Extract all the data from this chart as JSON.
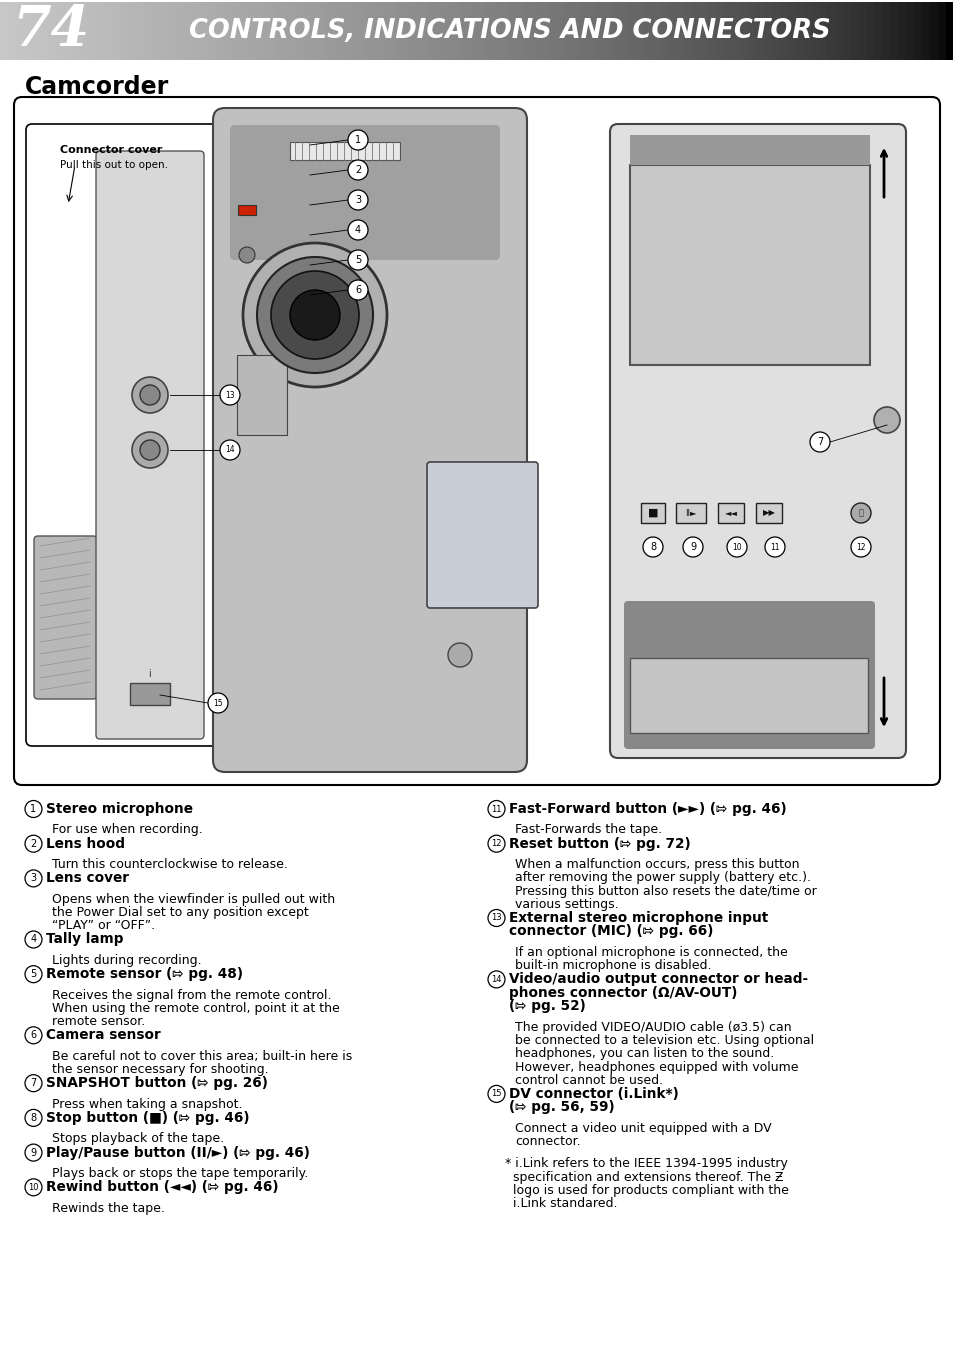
{
  "page_num": "74",
  "header_text": "CONTROLS, INDICATIONS AND CONNECTORS",
  "section_title": "Camcorder",
  "items_left": [
    {
      "num": "1",
      "title": "Stereo microphone",
      "title_bold": true,
      "desc": "For use when recording."
    },
    {
      "num": "2",
      "title": "Lens hood",
      "title_bold": true,
      "desc": "Turn this counterclockwise to release."
    },
    {
      "num": "3",
      "title": "Lens cover",
      "title_bold": true,
      "desc": "Opens when the viewfinder is pulled out with\nthe Power Dial set to any position except\n“PLAY” or “OFF”."
    },
    {
      "num": "4",
      "title": "Tally lamp",
      "title_bold": true,
      "desc": "Lights during recording."
    },
    {
      "num": "5",
      "title": "Remote sensor (⇰ pg. 48)",
      "title_bold": true,
      "desc": "Receives the signal from the remote control.\nWhen using the remote control, point it at the\nremote sensor."
    },
    {
      "num": "6",
      "title": "Camera sensor",
      "title_bold": true,
      "desc": "Be careful not to cover this area; built-in here is\nthe sensor necessary for shooting."
    },
    {
      "num": "7",
      "title": "SNAPSHOT button (⇰ pg. 26)",
      "title_bold": true,
      "desc": "Press when taking a snapshot."
    },
    {
      "num": "8",
      "title": "Stop button (■) (⇰ pg. 46)",
      "title_bold": true,
      "desc": "Stops playback of the tape."
    },
    {
      "num": "9",
      "title": "Play/Pause button (II/►) (⇰ pg. 46)",
      "title_bold": true,
      "desc": "Plays back or stops the tape temporarily."
    },
    {
      "num": "10",
      "title": "Rewind button (◄◄) (⇰ pg. 46)",
      "title_bold": true,
      "desc": "Rewinds the tape."
    }
  ],
  "items_right": [
    {
      "num": "11",
      "title": "Fast-Forward button (►►) (⇰ pg. 46)",
      "title_bold": true,
      "desc": "Fast-Forwards the tape."
    },
    {
      "num": "12",
      "title": "Reset button (⇰ pg. 72)",
      "title_bold": true,
      "desc": "When a malfunction occurs, press this button\nafter removing the power supply (battery etc.).\nPressing this button also resets the date/time or\nvarious settings."
    },
    {
      "num": "13",
      "title": "External stereo microphone input\nconnector (MIC) (⇰ pg. 66)",
      "title_bold": true,
      "desc": "If an optional microphone is connected, the\nbuilt-in microphone is disabled."
    },
    {
      "num": "14",
      "title": "Video/audio output connector or head-\nphones connector (Ω/AV-OUT)\n(⇰ pg. 52)",
      "title_bold": true,
      "desc": "The provided VIDEO/AUDIO cable (ø3.5) can\nbe connected to a television etc. Using optional\nheadphones, you can listen to the sound.\nHowever, headphones equipped with volume\ncontrol cannot be used."
    },
    {
      "num": "15",
      "title": "DV connector (i.Link*)\n(⇰ pg. 56, 59)",
      "title_bold": true,
      "desc": "Connect a video unit equipped with a DV\nconnector."
    },
    {
      "num": "*",
      "title": "",
      "title_bold": false,
      "desc": "i.Link refers to the IEEE 1394-1995 industry\nspecification and extensions thereof. The Ƶ\nlogo is used for products compliant with the\ni.Link standared."
    }
  ]
}
